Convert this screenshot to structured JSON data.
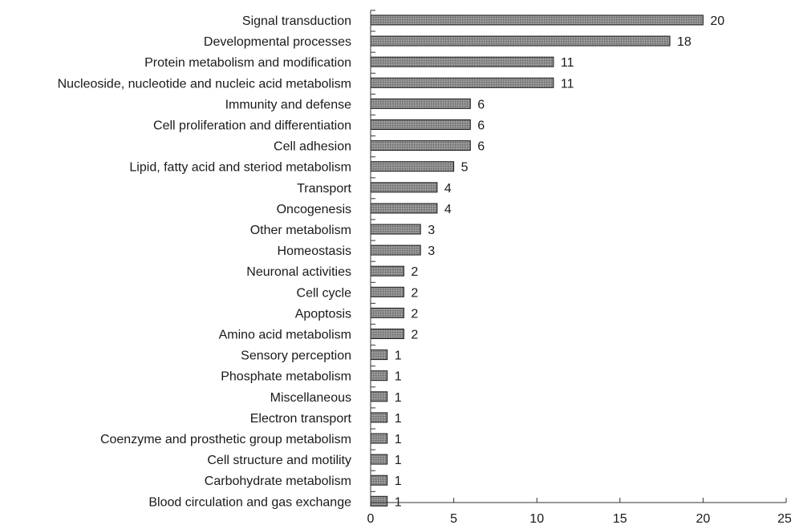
{
  "chart_data": {
    "type": "bar",
    "orientation": "horizontal",
    "title": "",
    "xlabel": "",
    "ylabel": "",
    "categories": [
      "Signal transduction",
      "Developmental processes",
      "Protein metabolism and modification",
      "Nucleoside, nucleotide and nucleic acid metabolism",
      "Immunity and defense",
      "Cell proliferation and differentiation",
      "Cell adhesion",
      "Lipid, fatty acid and steriod metabolism",
      "Transport",
      "Oncogenesis",
      "Other metabolism",
      "Homeostasis",
      "Neuronal activities",
      "Cell cycle",
      "Apoptosis",
      "Amino acid metabolism",
      "Sensory perception",
      "Phosphate metabolism",
      "Miscellaneous",
      "Electron transport",
      "Coenzyme and prosthetic group metabolism",
      "Cell structure and motility",
      "Carbohydrate metabolism",
      "Blood circulation and gas exchange"
    ],
    "values": [
      20,
      18,
      11,
      11,
      6,
      6,
      6,
      5,
      4,
      4,
      3,
      3,
      2,
      2,
      2,
      2,
      1,
      1,
      1,
      1,
      1,
      1,
      1,
      1
    ],
    "data_labels": [
      "20",
      "18",
      "11",
      "11",
      "6",
      "6",
      "6",
      "5",
      "4",
      "4",
      "3",
      "3",
      "2",
      "2",
      "2",
      "2",
      "1",
      "1",
      "1",
      "1",
      "1",
      "1",
      "1",
      "1"
    ],
    "xlim": [
      0,
      25
    ],
    "xticks": [
      0,
      5,
      10,
      15,
      20,
      25
    ],
    "xtick_labels": [
      "0",
      "5",
      "10",
      "15",
      "20",
      "25"
    ],
    "grid": false,
    "legend": "none",
    "colors": {
      "bar_fill": "#8c8c8c",
      "bar_stroke": "#1a1a1a",
      "text": "#1a1a1a",
      "axis": "#333333"
    }
  }
}
